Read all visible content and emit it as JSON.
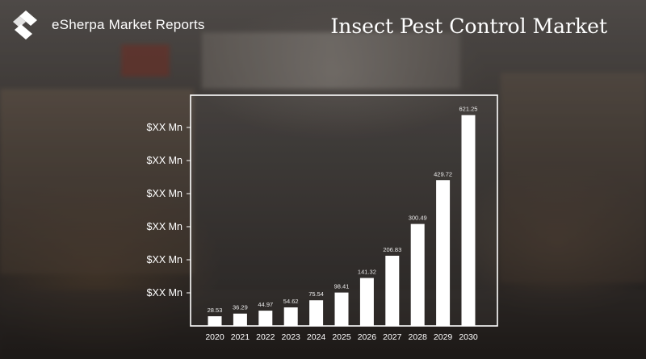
{
  "header": {
    "brand_name": "eSherpa Market Reports",
    "title": "Insect Pest Control Market"
  },
  "chart_data": {
    "type": "bar",
    "title": "",
    "xlabel": "",
    "ylabel": "",
    "categories": [
      "2020",
      "2021",
      "2022",
      "2023",
      "2024",
      "2025",
      "2026",
      "2027",
      "2028",
      "2029",
      "2030"
    ],
    "values": [
      28.53,
      36.29,
      44.97,
      54.62,
      75.54,
      98.41,
      141.32,
      206.83,
      300.49,
      429.72,
      621.25
    ],
    "value_labels": [
      "28.53",
      "36.29",
      "44.97",
      "54.62",
      "75.54",
      "98.41",
      "141.32",
      "206.83",
      "300.49",
      "429.72",
      "621.25"
    ],
    "y_tick_labels": [
      "$XX Mn",
      "$XX Mn",
      "$XX Mn",
      "$XX Mn",
      "$XX Mn",
      "$XX Mn"
    ],
    "ylim": [
      0,
      680
    ],
    "grid": false,
    "legend": "none",
    "colors": {
      "bar": "#ffffff",
      "text": "#ffffff",
      "axis": "#ffffff"
    }
  }
}
